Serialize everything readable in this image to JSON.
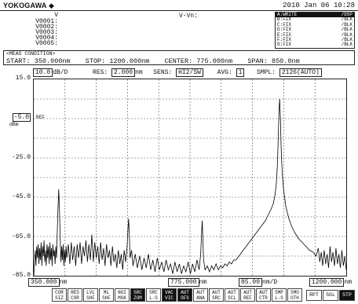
{
  "header": {
    "brand": "YOKOGAWA",
    "brand_mark": "◆",
    "datetime": "2010 Jan 06 10:28"
  },
  "markers": {
    "label": "V",
    "rows": [
      "V0001:",
      "V0002:",
      "V0003:",
      "V0004:",
      "V0005:"
    ],
    "delta": "V-Vn:"
  },
  "traces": [
    {
      "name": "A:WRITE",
      "disp": "/DSP",
      "active": true
    },
    {
      "name": "B:FIX",
      "disp": "/BLK",
      "active": false
    },
    {
      "name": "C:FIX",
      "disp": "/BLK",
      "active": false
    },
    {
      "name": "D:FIX",
      "disp": "/BLK",
      "active": false
    },
    {
      "name": "E:FIX",
      "disp": "/BLK",
      "active": false
    },
    {
      "name": "F:FIX",
      "disp": "/BLK",
      "active": false
    },
    {
      "name": "G:FIX",
      "disp": "/BLK",
      "active": false
    }
  ],
  "meas": {
    "title": "<MEAS CONDITION>",
    "start_label": "START:",
    "start": "350.000nm",
    "stop_label": "STOP:",
    "stop": "1200.000nm",
    "center_label": "CENTER:",
    "center": "775.000nm",
    "span_label": "SPAN:",
    "span": "850.0nm"
  },
  "settings": {
    "scale": "10.0",
    "scale_unit": "dB/D",
    "res_label": "RES:",
    "res": "2.000",
    "res_unit": "nm",
    "sens_label": "SENS:",
    "sens": "HI2/SW",
    "avg_label": "AVG:",
    "avg": "1",
    "smpl_label": "SMPL:",
    "smpl": "2126(AUTO)"
  },
  "yaxis": {
    "ticks": [
      "15.0",
      "-5.0",
      "-25.0",
      "-45.0",
      "-65.0",
      "-85.0"
    ],
    "unit": "dBm",
    "ref": "REF"
  },
  "xaxis": {
    "start": "350.000",
    "center": "775.000",
    "div": "85.00",
    "div_unit": "nm/D",
    "stop": "1200.000",
    "unit": "nm"
  },
  "softkeys": [
    {
      "top": "COR",
      "bottom": "SIZ",
      "on": false
    },
    {
      "top": "RES",
      "bottom": "COR",
      "on": false
    },
    {
      "top": "LVL",
      "bottom": "SHF",
      "on": false
    },
    {
      "top": "ML",
      "bottom": "SHF",
      "on": false
    },
    {
      "top": "NOI",
      "bottom": "MSK",
      "on": false
    },
    {
      "top": "SRC",
      "bottom": "ZOM",
      "on": true
    },
    {
      "top": "SRC",
      "bottom": "L-S",
      "on": false
    },
    {
      "top": "VAC",
      "bottom": "VIC",
      "on": true
    },
    {
      "top": "AUT",
      "bottom": "OFS",
      "on": true
    },
    {
      "top": "AUT",
      "bottom": "ANA",
      "on": false
    },
    {
      "top": "AUT",
      "bottom": "SRC",
      "on": false
    },
    {
      "top": "AUT",
      "bottom": "SCL",
      "on": false
    },
    {
      "top": "AUT",
      "bottom": "REF",
      "on": false
    },
    {
      "top": "AUT",
      "bottom": "CTR",
      "on": false
    },
    {
      "top": "SMP",
      "bottom": "L-S",
      "on": false
    },
    {
      "top": "SMO",
      "bottom": "OTH",
      "on": false
    }
  ],
  "run_keys": [
    {
      "label": "RPT",
      "on": false
    },
    {
      "label": "SGL",
      "on": false
    },
    {
      "label": "STP",
      "on": true
    }
  ],
  "chart_data": {
    "type": "line",
    "title": "",
    "xlabel": "",
    "ylabel": "",
    "x_unit": "nm",
    "y_unit": "dBm",
    "xlim": [
      350,
      1200
    ],
    "ylim": [
      -85,
      15
    ],
    "grid": true,
    "series": [
      {
        "x": [
          350,
          352,
          354,
          356,
          358,
          360,
          362,
          364,
          366,
          368,
          370,
          372,
          374,
          376,
          378,
          380,
          382,
          384,
          386,
          388,
          390,
          392,
          394,
          396,
          398,
          400,
          402,
          404,
          406,
          408,
          410,
          412,
          414,
          416,
          418,
          420,
          422,
          424,
          426,
          428,
          430,
          432,
          434,
          436,
          438,
          440,
          444,
          448,
          452,
          456,
          460,
          464,
          468,
          472,
          476,
          480,
          484,
          488,
          492,
          496,
          500,
          504,
          508,
          512,
          516,
          520,
          524,
          528,
          532,
          536,
          540,
          544,
          548,
          552,
          556,
          560,
          564,
          568,
          572,
          576,
          580,
          584,
          588,
          592,
          596,
          600,
          604,
          606,
          608,
          610,
          612,
          616,
          620,
          626,
          632,
          638,
          644,
          650,
          656,
          662,
          668,
          674,
          680,
          686,
          692,
          698,
          704,
          710,
          716,
          722,
          728,
          734,
          740,
          746,
          752,
          758,
          764,
          770,
          776,
          782,
          788,
          794,
          800,
          804,
          806,
          808,
          810,
          812,
          816,
          822,
          828,
          834,
          840,
          846,
          852,
          858,
          864,
          870,
          876,
          882,
          888,
          894,
          900,
          908,
          916,
          924,
          932,
          940,
          948,
          956,
          964,
          972,
          980,
          988,
          996,
          1002,
          1006,
          1010,
          1013,
          1015,
          1017,
          1019,
          1021,
          1023,
          1026,
          1030,
          1036,
          1044,
          1052,
          1060,
          1070,
          1080,
          1090,
          1100,
          1110,
          1118,
          1124,
          1128,
          1132,
          1136,
          1140,
          1144,
          1148,
          1152,
          1156,
          1160,
          1164,
          1168,
          1172,
          1176,
          1180,
          1184,
          1188,
          1192,
          1196,
          1200
        ],
        "y": [
          -85,
          -78,
          -72,
          -80,
          -70,
          -76,
          -69,
          -79,
          -71,
          -77,
          -68,
          -80,
          -70,
          -75,
          -67,
          -78,
          -72,
          -80,
          -69,
          -76,
          -70,
          -79,
          -68,
          -77,
          -71,
          -80,
          -69,
          -75,
          -72,
          -79,
          -70,
          -76,
          -62,
          -50,
          -41,
          -52,
          -66,
          -78,
          -70,
          -77,
          -69,
          -80,
          -72,
          -78,
          -70,
          -76,
          -69,
          -79,
          -68,
          -77,
          -70,
          -80,
          -69,
          -76,
          -68,
          -79,
          -70,
          -75,
          -67,
          -78,
          -69,
          -77,
          -64,
          -78,
          -68,
          -76,
          -70,
          -79,
          -68,
          -77,
          -71,
          -80,
          -69,
          -76,
          -72,
          -80,
          -70,
          -78,
          -74,
          -81,
          -72,
          -79,
          -74,
          -82,
          -72,
          -78,
          -70,
          -62,
          -56,
          -63,
          -76,
          -72,
          -80,
          -74,
          -81,
          -75,
          -82,
          -76,
          -81,
          -74,
          -82,
          -77,
          -83,
          -76,
          -82,
          -78,
          -83,
          -77,
          -82,
          -79,
          -84,
          -78,
          -83,
          -79,
          -84,
          -80,
          -83,
          -78,
          -84,
          -79,
          -83,
          -77,
          -82,
          -74,
          -66,
          -57,
          -66,
          -77,
          -82,
          -80,
          -83,
          -80,
          -82,
          -79,
          -82,
          -80,
          -81,
          -79,
          -80,
          -78,
          -79,
          -77,
          -77,
          -75,
          -73,
          -71,
          -69,
          -67,
          -65,
          -63,
          -61,
          -59,
          -57,
          -54,
          -51,
          -48,
          -44,
          -38,
          -28,
          -15,
          -2,
          5,
          -5,
          -20,
          -33,
          -42,
          -50,
          -56,
          -60,
          -63,
          -66,
          -68,
          -70,
          -72,
          -73,
          -75,
          -71,
          -78,
          -73,
          -80,
          -72,
          -79,
          -74,
          -81,
          -70,
          -78,
          -73,
          -80,
          -71,
          -79,
          -74,
          -81,
          -72,
          -80,
          -75,
          -82
        ]
      }
    ]
  }
}
